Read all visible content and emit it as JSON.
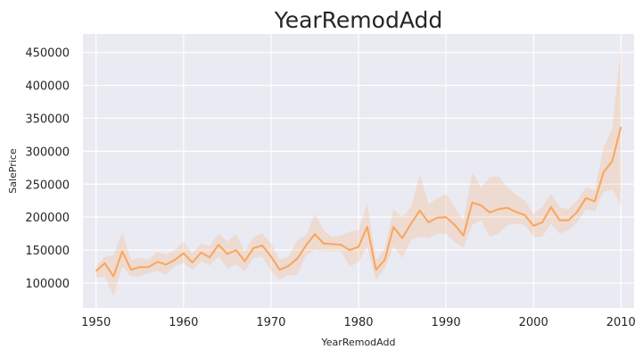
{
  "chart_data": {
    "type": "line",
    "title": "YearRemodAdd",
    "xlabel": "YearRemodAdd",
    "ylabel": "SalePrice",
    "xlim": [
      1948.5,
      2011.5
    ],
    "ylim": [
      62000,
      478000
    ],
    "xticks": [
      1950,
      1960,
      1970,
      1980,
      1990,
      2000,
      2010
    ],
    "yticks": [
      100000,
      150000,
      200000,
      250000,
      300000,
      350000,
      400000,
      450000
    ],
    "grid": true,
    "legend": "none",
    "colors": {
      "line": "#fba55a",
      "band": "#fba55a",
      "plot_bg": "#eaeaf2",
      "grid": "#ffffff",
      "text": "#262626"
    },
    "series": [
      {
        "x": [
          1950,
          1951,
          1952,
          1953,
          1954,
          1955,
          1956,
          1957,
          1958,
          1959,
          1960,
          1961,
          1962,
          1963,
          1964,
          1965,
          1966,
          1967,
          1968,
          1969,
          1970,
          1971,
          1972,
          1973,
          1974,
          1975,
          1976,
          1977,
          1978,
          1979,
          1980,
          1981,
          1982,
          1983,
          1984,
          1985,
          1986,
          1987,
          1988,
          1989,
          1990,
          1991,
          1992,
          1993,
          1994,
          1995,
          1996,
          1997,
          1998,
          1999,
          2000,
          2001,
          2002,
          2003,
          2004,
          2005,
          2006,
          2007,
          2008,
          2009,
          2010
        ],
        "y": [
          118000,
          130000,
          110000,
          148000,
          120000,
          124000,
          124000,
          132000,
          128000,
          135000,
          145000,
          131000,
          146000,
          139000,
          158000,
          144000,
          150000,
          133000,
          153000,
          157000,
          140000,
          120000,
          126000,
          137000,
          157000,
          174000,
          160000,
          159000,
          158000,
          150000,
          155000,
          185000,
          120000,
          135000,
          185000,
          168000,
          190000,
          210000,
          192000,
          199000,
          200000,
          188000,
          172000,
          222000,
          218000,
          207000,
          212000,
          214000,
          208000,
          203000,
          187000,
          192000,
          215000,
          195000,
          195000,
          208000,
          229000,
          224000,
          268000,
          285000,
          337000
        ],
        "lower": [
          108000,
          110000,
          80000,
          125000,
          110000,
          110000,
          115000,
          118000,
          112000,
          125000,
          130000,
          120000,
          133000,
          127000,
          140000,
          122000,
          128000,
          118000,
          138000,
          140000,
          118000,
          105000,
          112000,
          112000,
          142000,
          150000,
          148000,
          148000,
          148000,
          125000,
          132000,
          155000,
          104000,
          122000,
          156000,
          138000,
          165000,
          170000,
          168000,
          175000,
          175000,
          162000,
          153000,
          188000,
          195000,
          170000,
          175000,
          188000,
          190000,
          188000,
          170000,
          170000,
          190000,
          175000,
          180000,
          192000,
          212000,
          208000,
          238000,
          242000,
          218000
        ]
      }
    ],
    "upper": [
      125000,
      140000,
      142000,
      176000,
      135000,
      138000,
      135000,
      147000,
      143000,
      150000,
      163000,
      145000,
      160000,
      156000,
      175000,
      163000,
      174000,
      147000,
      170000,
      175000,
      160000,
      135000,
      140000,
      165000,
      172000,
      205000,
      180000,
      170000,
      172000,
      178000,
      180000,
      220000,
      135000,
      152000,
      212000,
      200000,
      215000,
      265000,
      220000,
      228000,
      235000,
      215000,
      195000,
      268000,
      245000,
      260000,
      262000,
      245000,
      234000,
      225000,
      205000,
      215000,
      235000,
      215000,
      212000,
      225000,
      245000,
      240000,
      305000,
      335000,
      458000
    ]
  }
}
